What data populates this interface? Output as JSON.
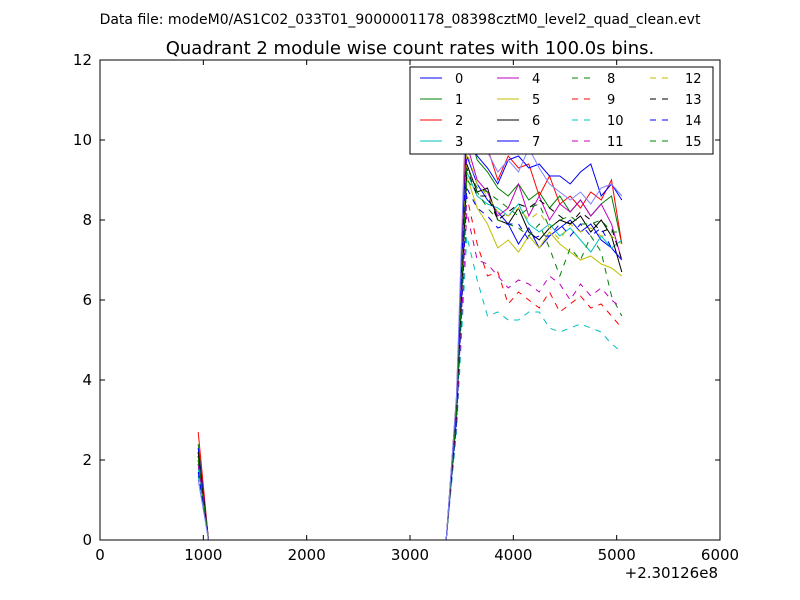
{
  "chart_data": {
    "type": "line",
    "suptitle": "Data file: modeM0/AS1C02_033T01_9000001178_08398cztM0_level2_quad_clean.evt",
    "title": "Quadrant 2 module wise count rates with 100.0s bins.",
    "xlabel": "",
    "ylabel": "",
    "x_offset_label": "+2.30126e8",
    "xlim": [
      0,
      6000
    ],
    "ylim": [
      0,
      12
    ],
    "xticks": [
      0,
      1000,
      2000,
      3000,
      4000,
      5000,
      6000
    ],
    "yticks": [
      0,
      2,
      4,
      6,
      8,
      10,
      12
    ],
    "xtick_labels": [
      "0",
      "1000",
      "2000",
      "3000",
      "4000",
      "5000",
      "6000"
    ],
    "ytick_labels": [
      "0",
      "2",
      "4",
      "6",
      "8",
      "10",
      "12"
    ],
    "grid": false,
    "legend_position": "top-right",
    "x": [
      950,
      1050,
      1150,
      1250,
      1350,
      1450,
      1550,
      1650,
      1750,
      1850,
      1950,
      2050,
      2150,
      2250,
      2350,
      2450,
      2550,
      2650,
      2750,
      2850,
      2950,
      3050,
      3150,
      3250,
      3350,
      3450,
      3550,
      3650,
      3750,
      3850,
      3950,
      4050,
      4150,
      4250,
      4350,
      4450,
      4550,
      4650,
      4750,
      4850,
      4950,
      5050
    ],
    "series": [
      {
        "name": "0",
        "color": "#0000ff",
        "dash": "solid",
        "values": [
          1.9,
          0,
          0,
          0,
          0,
          0,
          0,
          0,
          0,
          0,
          0,
          0,
          0,
          0,
          0,
          0,
          0,
          0,
          0,
          0,
          0,
          0,
          0,
          0,
          0,
          3.2,
          9.6,
          8.9,
          8.5,
          8.2,
          7.9,
          7.4,
          7.8,
          7.3,
          7.6,
          7.8,
          8.0,
          7.7,
          7.9,
          7.5,
          7.3,
          7.0
        ]
      },
      {
        "name": "1",
        "color": "#008000",
        "dash": "solid",
        "values": [
          2.4,
          0,
          0,
          0,
          0,
          0,
          0,
          0,
          0,
          0,
          0,
          0,
          0,
          0,
          0,
          0,
          0,
          0,
          0,
          0,
          0,
          0,
          0,
          0,
          0,
          3.4,
          10.4,
          9.5,
          9.2,
          8.8,
          8.6,
          8.9,
          8.5,
          8.7,
          8.3,
          8.6,
          8.2,
          8.5,
          8.1,
          8.4,
          8.6,
          7.4
        ]
      },
      {
        "name": "2",
        "color": "#ff0000",
        "dash": "solid",
        "values": [
          2.7,
          0,
          0,
          0,
          0,
          0,
          0,
          0,
          0,
          0,
          0,
          0,
          0,
          0,
          0,
          0,
          0,
          0,
          0,
          0,
          0,
          0,
          0,
          0,
          0,
          3.6,
          10.6,
          9.7,
          9.8,
          9.0,
          9.6,
          9.3,
          9.4,
          8.6,
          9.1,
          8.4,
          8.6,
          8.3,
          8.7,
          8.5,
          9.0,
          7.4
        ]
      },
      {
        "name": "3",
        "color": "#00bfbf",
        "dash": "solid",
        "values": [
          1.8,
          0,
          0,
          0,
          0,
          0,
          0,
          0,
          0,
          0,
          0,
          0,
          0,
          0,
          0,
          0,
          0,
          0,
          0,
          0,
          0,
          0,
          0,
          0,
          0,
          3.0,
          9.2,
          8.6,
          8.4,
          8.3,
          8.1,
          8.4,
          7.9,
          7.7,
          7.9,
          7.6,
          7.8,
          7.5,
          7.2,
          7.6,
          7.3,
          7.5
        ]
      },
      {
        "name": "4",
        "color": "#bf00bf",
        "dash": "solid",
        "values": [
          2.2,
          0,
          0,
          0,
          0,
          0,
          0,
          0,
          0,
          0,
          0,
          0,
          0,
          0,
          0,
          0,
          0,
          0,
          0,
          0,
          0,
          0,
          0,
          0,
          0,
          3.3,
          9.9,
          9.0,
          8.7,
          8.1,
          8.3,
          8.9,
          8.1,
          8.6,
          8.0,
          8.4,
          8.2,
          8.5,
          8.1,
          8.4,
          7.9,
          7.0
        ]
      },
      {
        "name": "5",
        "color": "#bfbf00",
        "dash": "solid",
        "values": [
          2.0,
          0,
          0,
          0,
          0,
          0,
          0,
          0,
          0,
          0,
          0,
          0,
          0,
          0,
          0,
          0,
          0,
          0,
          0,
          0,
          0,
          0,
          0,
          0,
          0,
          3.1,
          9.1,
          8.3,
          7.9,
          7.3,
          7.5,
          7.2,
          7.6,
          7.3,
          7.7,
          7.4,
          7.2,
          7.0,
          7.1,
          6.9,
          6.8,
          6.6
        ]
      },
      {
        "name": "6",
        "color": "#000000",
        "dash": "solid",
        "values": [
          2.1,
          0,
          0,
          0,
          0,
          0,
          0,
          0,
          0,
          0,
          0,
          0,
          0,
          0,
          0,
          0,
          0,
          0,
          0,
          0,
          0,
          0,
          0,
          0,
          0,
          3.2,
          9.4,
          8.7,
          8.8,
          8.0,
          7.9,
          8.3,
          7.7,
          7.5,
          7.8,
          8.0,
          7.9,
          8.1,
          7.7,
          8.0,
          7.6,
          6.7
        ]
      },
      {
        "name": "7",
        "color": "#0000ff",
        "dash": "solid",
        "values": [
          2.3,
          0,
          0,
          0,
          0,
          0,
          0,
          0,
          0,
          0,
          0,
          0,
          0,
          0,
          0,
          0,
          0,
          0,
          0,
          0,
          0,
          0,
          0,
          0,
          0,
          3.5,
          10.2,
          9.6,
          9.3,
          8.9,
          9.5,
          9.6,
          9.3,
          9.4,
          9.1,
          9.1,
          8.9,
          9.2,
          9.4,
          8.6,
          8.9,
          8.5
        ]
      },
      {
        "name": "8",
        "color": "#008000",
        "dash": "dashed",
        "values": [
          2.1,
          0,
          0,
          0,
          0,
          0,
          0,
          0,
          0,
          0,
          0,
          0,
          0,
          0,
          0,
          0,
          0,
          0,
          0,
          0,
          0,
          0,
          0,
          0,
          0,
          3.1,
          9.0,
          8.7,
          8.3,
          8.0,
          7.9,
          7.8,
          7.6,
          7.9,
          7.3,
          6.6,
          7.3,
          7.0,
          7.6,
          7.2,
          6.1,
          5.6
        ]
      },
      {
        "name": "9",
        "color": "#ff0000",
        "dash": "dashed",
        "values": [
          2.0,
          0,
          0,
          0,
          0,
          0,
          0,
          0,
          0,
          0,
          0,
          0,
          0,
          0,
          0,
          0,
          0,
          0,
          0,
          0,
          0,
          0,
          0,
          0,
          0,
          3.0,
          8.6,
          7.4,
          6.6,
          6.7,
          5.9,
          6.2,
          6.0,
          5.8,
          6.2,
          5.7,
          5.9,
          6.1,
          5.8,
          5.9,
          5.6,
          5.3
        ]
      },
      {
        "name": "10",
        "color": "#00bfbf",
        "dash": "dashed",
        "values": [
          1.6,
          0,
          0,
          0,
          0,
          0,
          0,
          0,
          0,
          0,
          0,
          0,
          0,
          0,
          0,
          0,
          0,
          0,
          0,
          0,
          0,
          0,
          0,
          0,
          0,
          2.7,
          7.6,
          6.5,
          5.6,
          5.7,
          5.5,
          5.5,
          5.7,
          5.7,
          5.3,
          5.2,
          5.3,
          5.4,
          5.3,
          5.2,
          4.9,
          4.7
        ]
      },
      {
        "name": "11",
        "color": "#bf00bf",
        "dash": "dashed",
        "values": [
          1.9,
          0,
          0,
          0,
          0,
          0,
          0,
          0,
          0,
          0,
          0,
          0,
          0,
          0,
          0,
          0,
          0,
          0,
          0,
          0,
          0,
          0,
          0,
          0,
          0,
          2.9,
          8.2,
          7.0,
          6.9,
          6.6,
          6.3,
          6.5,
          6.4,
          6.2,
          6.6,
          6.4,
          6.0,
          6.4,
          6.1,
          6.3,
          6.0,
          5.8
        ]
      },
      {
        "name": "12",
        "color": "#bfbf00",
        "dash": "dashed",
        "values": [
          2.2,
          0,
          0,
          0,
          0,
          0,
          0,
          0,
          0,
          0,
          0,
          0,
          0,
          0,
          0,
          0,
          0,
          0,
          0,
          0,
          0,
          0,
          0,
          0,
          0,
          3.3,
          9.7,
          8.9,
          8.6,
          8.2,
          8.1,
          8.3,
          8.0,
          8.2,
          7.8,
          7.5,
          7.9,
          7.7,
          7.8,
          7.6,
          7.6,
          7.4
        ]
      },
      {
        "name": "13",
        "color": "#000000",
        "dash": "dashed",
        "values": [
          2.2,
          0,
          0,
          0,
          0,
          0,
          0,
          0,
          0,
          0,
          0,
          0,
          0,
          0,
          0,
          0,
          0,
          0,
          0,
          0,
          0,
          0,
          0,
          0,
          0,
          3.2,
          9.3,
          8.6,
          8.6,
          8.0,
          8.2,
          8.4,
          8.3,
          8.5,
          8.3,
          8.1,
          7.9,
          8.2,
          8.0,
          7.7,
          7.8,
          7.0
        ]
      },
      {
        "name": "14",
        "color": "#0000ff",
        "dash": "dashed",
        "values": [
          1.7,
          0,
          0,
          0,
          0,
          0,
          0,
          0,
          0,
          0,
          0,
          0,
          0,
          0,
          0,
          0,
          0,
          0,
          0,
          0,
          0,
          0,
          0,
          0,
          0,
          2.9,
          8.8,
          8.3,
          8.1,
          7.8,
          7.9,
          7.9,
          7.5,
          7.6,
          7.6,
          7.9,
          7.6,
          7.9,
          7.6,
          7.8,
          7.3,
          7.0
        ]
      },
      {
        "name": "15",
        "color": "#008000",
        "dash": "dashed",
        "values": [
          2.0,
          0,
          0,
          0,
          0,
          0,
          0,
          0,
          0,
          0,
          0,
          0,
          0,
          0,
          0,
          0,
          0,
          0,
          0,
          0,
          0,
          0,
          0,
          0,
          0,
          3.1,
          9.3,
          8.8,
          8.7,
          8.5,
          8.3,
          8.1,
          8.3,
          8.4,
          7.8,
          8.0,
          8.1,
          7.9,
          7.9,
          8.0,
          7.7,
          7.7
        ]
      },
      {
        "name": "",
        "color": "#8080ff",
        "dash": "solid",
        "values": [
          1.5,
          0,
          0,
          0,
          0,
          0,
          0,
          0,
          0,
          0,
          0,
          0,
          0,
          0,
          0,
          0,
          0,
          0,
          0,
          0,
          0,
          0,
          0,
          0,
          0,
          3.6,
          11.6,
          10.1,
          9.7,
          9.2,
          9.5,
          9.2,
          9.8,
          9.3,
          8.9,
          8.7,
          8.5,
          8.7,
          8.4,
          8.8,
          8.9,
          8.6
        ]
      }
    ]
  }
}
